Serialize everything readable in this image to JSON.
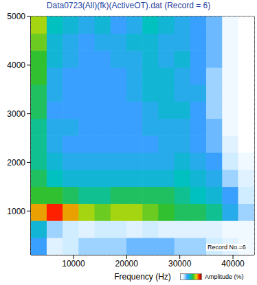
{
  "chart_data": {
    "type": "heatmap",
    "title": "Data0723(All)(fk)(ActiveOT).dat (Record = 6)",
    "x_label": "Frequency (Hz)",
    "x": [
      3500,
      6500,
      9500,
      12500,
      15500,
      18500,
      21500,
      24500,
      27500,
      30500,
      33500,
      36500,
      39500,
      42500
    ],
    "y": [
      275,
      625,
      975,
      1325,
      1675,
      2025,
      2375,
      2725,
      3075,
      3425,
      3775,
      4125,
      4475,
      4825
    ],
    "cells": [
      [
        30,
        10,
        15,
        20,
        20,
        20,
        25,
        25,
        25,
        20,
        20,
        15,
        10,
        5
      ],
      [
        40,
        20,
        15,
        10,
        15,
        15,
        10,
        15,
        10,
        10,
        10,
        10,
        5,
        5
      ],
      [
        80,
        90,
        80,
        70,
        65,
        70,
        70,
        65,
        60,
        55,
        55,
        50,
        35,
        20
      ],
      [
        60,
        60,
        55,
        50,
        50,
        55,
        55,
        55,
        55,
        50,
        45,
        40,
        30,
        15
      ],
      [
        55,
        45,
        40,
        40,
        40,
        40,
        40,
        40,
        40,
        45,
        40,
        35,
        20,
        10
      ],
      [
        50,
        40,
        35,
        35,
        35,
        35,
        35,
        35,
        35,
        40,
        35,
        30,
        15,
        5
      ],
      [
        50,
        35,
        30,
        30,
        30,
        30,
        30,
        30,
        35,
        35,
        30,
        25,
        10,
        0
      ],
      [
        50,
        35,
        35,
        30,
        30,
        30,
        30,
        35,
        35,
        35,
        30,
        25,
        5,
        0
      ],
      [
        55,
        30,
        30,
        30,
        30,
        30,
        30,
        35,
        40,
        40,
        30,
        20,
        5,
        0
      ],
      [
        55,
        35,
        30,
        30,
        30,
        30,
        35,
        40,
        40,
        35,
        35,
        20,
        5,
        0
      ],
      [
        60,
        35,
        30,
        30,
        30,
        30,
        35,
        40,
        40,
        35,
        30,
        20,
        5,
        0
      ],
      [
        60,
        40,
        35,
        30,
        30,
        35,
        35,
        40,
        35,
        40,
        30,
        25,
        5,
        0
      ],
      [
        65,
        40,
        35,
        30,
        35,
        35,
        40,
        40,
        35,
        35,
        30,
        25,
        5,
        0
      ],
      [
        70,
        45,
        40,
        35,
        40,
        30,
        35,
        45,
        40,
        35,
        30,
        25,
        5,
        0
      ]
    ],
    "xlim": [
      2000,
      44000
    ],
    "ylim": [
      100,
      5000
    ],
    "xticks": [
      10000,
      20000,
      30000,
      40000
    ],
    "yticks": [
      1000,
      2000,
      3000,
      4000,
      5000
    ],
    "grid": true,
    "colorbar": {
      "label": "Amplitude (%)",
      "range": [
        0,
        100
      ]
    },
    "annotations": [
      "Record No.=6"
    ]
  }
}
